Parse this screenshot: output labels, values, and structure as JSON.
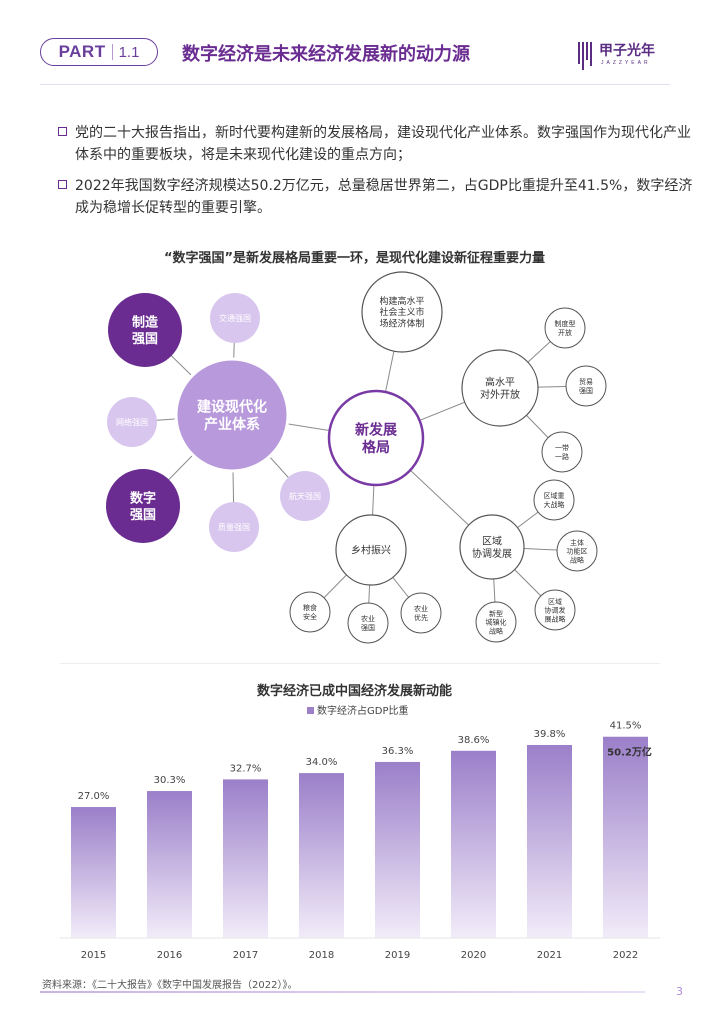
{
  "header": {
    "part_label": "PART",
    "part_number": "1.1",
    "title": "数字经济是未来经济发展新的动力源",
    "logo_text": "甲子光年",
    "logo_subtext": "JAZZYEAR"
  },
  "bullets": [
    "党的二十大报告指出，新时代要构建新的发展格局，建设现代化产业体系。数字强国作为现代化产业体系中的重要板块，将是未来现代化建设的重点方向；",
    "2022年我国数字经济规模达50.2万亿元，总量稳居世界第二，占GDP比重提升至41.5%，数字经济成为稳增长促转型的重要引擎。"
  ],
  "diagram": {
    "title": "“数字强国”是新发展格局重要一环，是现代化建设新征程重要力量",
    "left_hub": "建设现代化\n产业体系",
    "left_strong": [
      "制造\n强国",
      "数字\n强国"
    ],
    "left_small": [
      "交通强国",
      "网络强国",
      "航天强国",
      "质量强国"
    ],
    "center": "新发展\n格局",
    "center_top": "构建高水平\n社会主义市\n场经济体制",
    "branch_open": "高水平\n对外开放",
    "branch_open_children": [
      "制度型\n开放",
      "贸易\n强国",
      "一带\n一路"
    ],
    "branch_region": "区域\n协调发展",
    "branch_region_children": [
      "区域重\n大战略",
      "主体\n功能区\n战略",
      "区域\n协调发\n展战略",
      "新型\n城镇化\n战略"
    ],
    "branch_rural": "乡村振兴",
    "branch_rural_children": [
      "粮食\n安全",
      "农业\n强国",
      "农业\n优先"
    ]
  },
  "chart_title": "数字经济已成中国经济发展新动能",
  "chart_data": {
    "type": "bar",
    "title": "数字经济已成中国经济发展新动能",
    "categories": [
      "2015",
      "2016",
      "2017",
      "2018",
      "2019",
      "2020",
      "2021",
      "2022"
    ],
    "series": [
      {
        "name": "数字经济占GDP比重",
        "values": [
          27.0,
          30.3,
          32.7,
          34.0,
          36.3,
          38.6,
          39.8,
          41.5
        ]
      }
    ],
    "value_labels": [
      "27.0%",
      "30.3%",
      "32.7%",
      "34.0%",
      "36.3%",
      "38.6%",
      "39.8%",
      "41.5%"
    ],
    "annotation": "50.2万亿",
    "legend_position": "top-center",
    "grid": false,
    "bar_color": "#9b7fc9"
  },
  "footer": {
    "source": "资料来源：《二十大报告》《数字中国发展报告（2022）》。",
    "page_number": "3"
  }
}
